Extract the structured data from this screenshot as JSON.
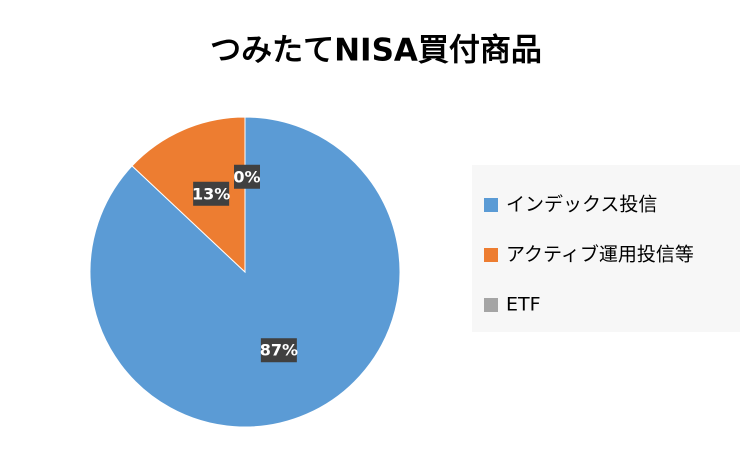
{
  "chart_data": {
    "type": "pie",
    "title": "つみたてNISA買付商品",
    "categories": [
      "インデックス投信",
      "アクティブ運用投信等",
      "ETF"
    ],
    "values": [
      87,
      13,
      0
    ],
    "value_labels": [
      "87%",
      "13%",
      "0%"
    ],
    "colors": [
      "#5b9bd5",
      "#ed7d31",
      "#a5a5a5"
    ],
    "legend": "right"
  }
}
